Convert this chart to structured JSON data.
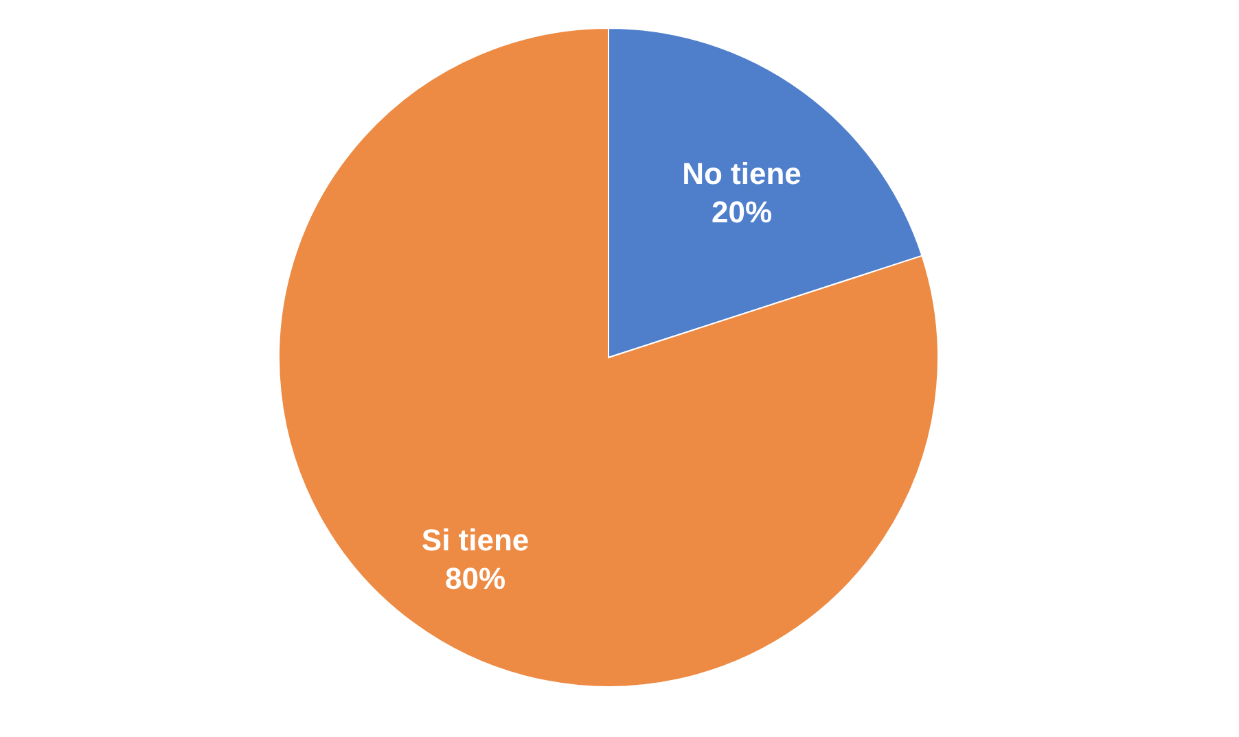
{
  "chart_data": {
    "type": "pie",
    "categories": [
      "No tiene",
      "Si tiene"
    ],
    "values": [
      20,
      80
    ],
    "colors": [
      "#4f7fcb",
      "#ed8a43"
    ],
    "value_labels": [
      "20%",
      "80%"
    ],
    "legend": false
  }
}
